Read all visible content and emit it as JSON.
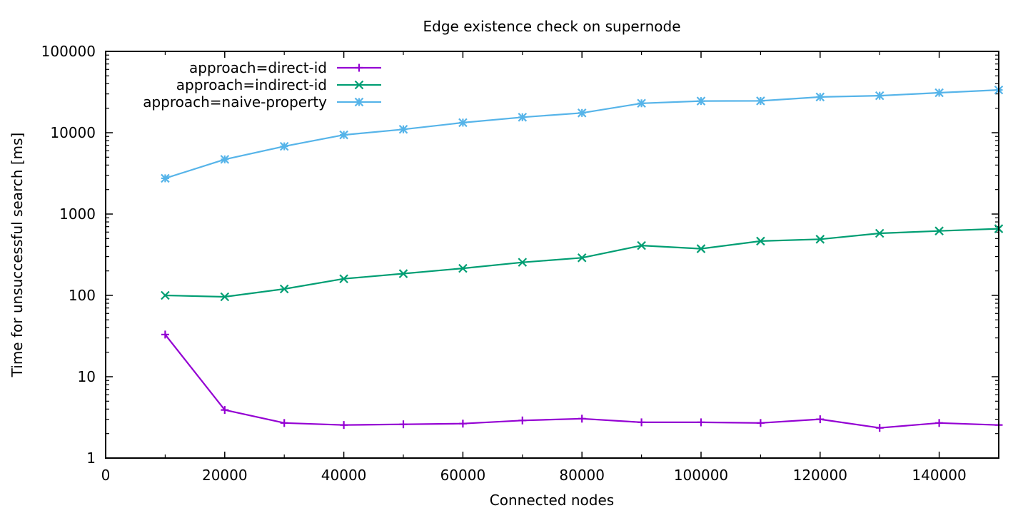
{
  "chart_data": {
    "type": "line",
    "title": "Edge existence check on supernode",
    "xlabel": "Connected nodes",
    "ylabel": "Time for unsuccessful search [ms]",
    "xlim": [
      0,
      150000
    ],
    "ylim": [
      1,
      100000
    ],
    "yscale": "log",
    "grid": false,
    "legend_position": "top-left",
    "x_ticks": [
      0,
      20000,
      40000,
      60000,
      80000,
      100000,
      120000,
      140000
    ],
    "x_tick_labels": [
      "0",
      "20000",
      "40000",
      "60000",
      "80000",
      "100000",
      "120000",
      "140000"
    ],
    "y_ticks": [
      1,
      10,
      100,
      1000,
      10000,
      100000
    ],
    "y_tick_labels": [
      "1",
      "10",
      "100",
      "1000",
      "10000",
      "100000"
    ],
    "x": [
      10000,
      20000,
      30000,
      40000,
      50000,
      60000,
      70000,
      80000,
      90000,
      100000,
      110000,
      120000,
      130000,
      140000,
      150000
    ],
    "series": [
      {
        "name": "approach=direct-id",
        "color": "#9400d3",
        "marker": "plus",
        "values": [
          33,
          3.9,
          2.7,
          2.55,
          2.6,
          2.65,
          2.9,
          3.05,
          2.75,
          2.75,
          2.7,
          3.0,
          2.35,
          2.7,
          2.55
        ]
      },
      {
        "name": "approach=indirect-id",
        "color": "#009e73",
        "marker": "cross",
        "values": [
          100,
          96,
          120,
          160,
          185,
          215,
          255,
          290,
          410,
          375,
          465,
          490,
          580,
          620,
          660
        ]
      },
      {
        "name": "approach=naive-property",
        "color": "#56b4e9",
        "marker": "star",
        "values": [
          2750,
          4700,
          6800,
          9400,
          11000,
          13300,
          15500,
          17500,
          23000,
          24500,
          24600,
          27500,
          28500,
          31000,
          33500
        ]
      }
    ]
  }
}
